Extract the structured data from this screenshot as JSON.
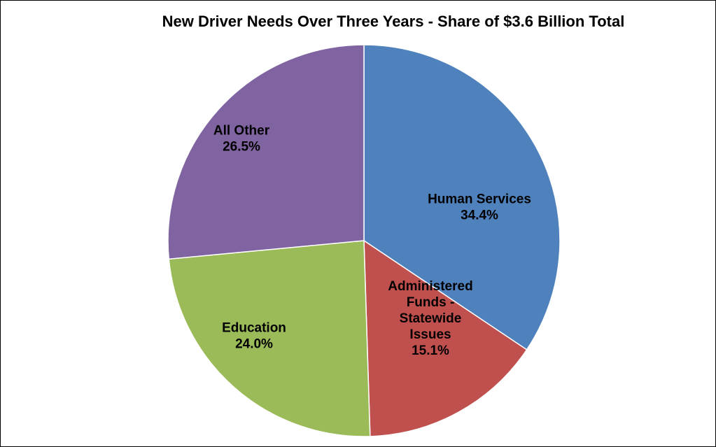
{
  "chart_data": {
    "type": "pie",
    "title": "New Driver Needs Over Three Years - Share of $3.6 Billion Total",
    "slices": [
      {
        "name": "Human Services",
        "value": 34.4,
        "label_lines": [
          "Human Services",
          "34.4%"
        ],
        "color": "#4F81BD"
      },
      {
        "name": "Administered Funds - Statewide Issues",
        "value": 15.1,
        "label_lines": [
          "Administered",
          "Funds -",
          "Statewide",
          "Issues",
          "15.1%"
        ],
        "color": "#C0504D"
      },
      {
        "name": "Education",
        "value": 24.0,
        "label_lines": [
          "Education",
          "24.0%"
        ],
        "color": "#9BBB59"
      },
      {
        "name": "All Other",
        "value": 26.5,
        "label_lines": [
          "All Other",
          "26.5%"
        ],
        "color": "#8064A2"
      }
    ],
    "legend": "none"
  }
}
